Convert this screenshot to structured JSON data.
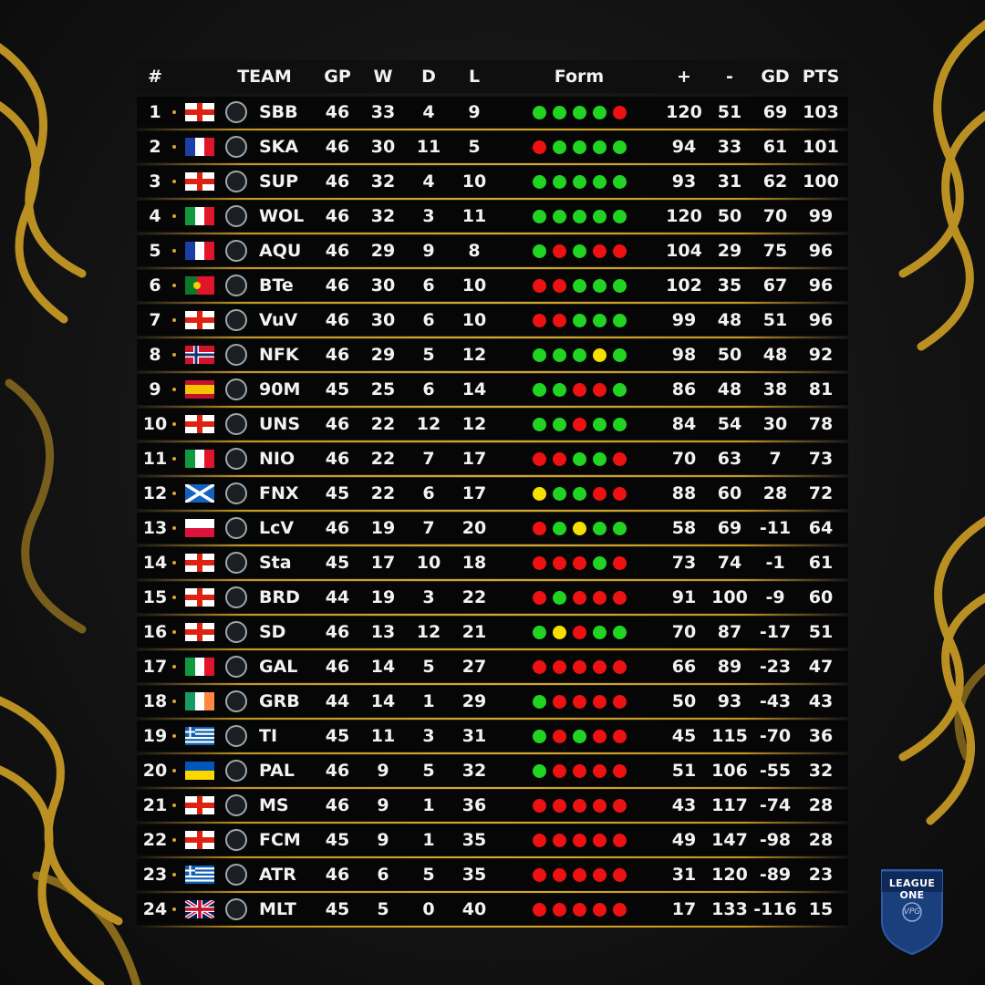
{
  "colors": {
    "accent_gold": "#d9a727",
    "win": "#22d422",
    "loss": "#ee1111",
    "draw": "#f5e000",
    "background": "#141414"
  },
  "header": {
    "rank": "#",
    "team": "TEAM",
    "gp": "GP",
    "w": "W",
    "d": "D",
    "l": "L",
    "form": "Form",
    "plus": "+",
    "minus": "-",
    "gd": "GD",
    "pts": "PTS"
  },
  "rows": [
    {
      "rank": "1",
      "flag": "england",
      "team": "SBB",
      "gp": "46",
      "w": "33",
      "d": "4",
      "l": "9",
      "form": [
        "W",
        "W",
        "W",
        "W",
        "L"
      ],
      "plus": "120",
      "minus": "51",
      "gd": "69",
      "pts": "103"
    },
    {
      "rank": "2",
      "flag": "france",
      "team": "SKA",
      "gp": "46",
      "w": "30",
      "d": "11",
      "l": "5",
      "form": [
        "L",
        "W",
        "W",
        "W",
        "W"
      ],
      "plus": "94",
      "minus": "33",
      "gd": "61",
      "pts": "101"
    },
    {
      "rank": "3",
      "flag": "england",
      "team": "SUP",
      "gp": "46",
      "w": "32",
      "d": "4",
      "l": "10",
      "form": [
        "W",
        "W",
        "W",
        "W",
        "W"
      ],
      "plus": "93",
      "minus": "31",
      "gd": "62",
      "pts": "100"
    },
    {
      "rank": "4",
      "flag": "italy",
      "team": "WOL",
      "gp": "46",
      "w": "32",
      "d": "3",
      "l": "11",
      "form": [
        "W",
        "W",
        "W",
        "W",
        "W"
      ],
      "plus": "120",
      "minus": "50",
      "gd": "70",
      "pts": "99"
    },
    {
      "rank": "5",
      "flag": "france",
      "team": "AQU",
      "gp": "46",
      "w": "29",
      "d": "9",
      "l": "8",
      "form": [
        "W",
        "L",
        "W",
        "L",
        "L"
      ],
      "plus": "104",
      "minus": "29",
      "gd": "75",
      "pts": "96"
    },
    {
      "rank": "6",
      "flag": "portugal",
      "team": "BTe",
      "gp": "46",
      "w": "30",
      "d": "6",
      "l": "10",
      "form": [
        "L",
        "L",
        "W",
        "W",
        "W"
      ],
      "plus": "102",
      "minus": "35",
      "gd": "67",
      "pts": "96"
    },
    {
      "rank": "7",
      "flag": "england",
      "team": "VuV",
      "gp": "46",
      "w": "30",
      "d": "6",
      "l": "10",
      "form": [
        "L",
        "L",
        "W",
        "W",
        "W"
      ],
      "plus": "99",
      "minus": "48",
      "gd": "51",
      "pts": "96"
    },
    {
      "rank": "8",
      "flag": "norway",
      "team": "NFK",
      "gp": "46",
      "w": "29",
      "d": "5",
      "l": "12",
      "form": [
        "W",
        "W",
        "W",
        "D",
        "W"
      ],
      "plus": "98",
      "minus": "50",
      "gd": "48",
      "pts": "92"
    },
    {
      "rank": "9",
      "flag": "spain",
      "team": "90M",
      "gp": "45",
      "w": "25",
      "d": "6",
      "l": "14",
      "form": [
        "W",
        "W",
        "L",
        "L",
        "W"
      ],
      "plus": "86",
      "minus": "48",
      "gd": "38",
      "pts": "81"
    },
    {
      "rank": "10",
      "flag": "england",
      "team": "UNS",
      "gp": "46",
      "w": "22",
      "d": "12",
      "l": "12",
      "form": [
        "W",
        "W",
        "L",
        "W",
        "W"
      ],
      "plus": "84",
      "minus": "54",
      "gd": "30",
      "pts": "78"
    },
    {
      "rank": "11",
      "flag": "italy",
      "team": "NIO",
      "gp": "46",
      "w": "22",
      "d": "7",
      "l": "17",
      "form": [
        "L",
        "L",
        "W",
        "W",
        "L"
      ],
      "plus": "70",
      "minus": "63",
      "gd": "7",
      "pts": "73"
    },
    {
      "rank": "12",
      "flag": "scotland",
      "team": "FNX",
      "gp": "45",
      "w": "22",
      "d": "6",
      "l": "17",
      "form": [
        "D",
        "W",
        "W",
        "L",
        "L"
      ],
      "plus": "88",
      "minus": "60",
      "gd": "28",
      "pts": "72"
    },
    {
      "rank": "13",
      "flag": "poland",
      "team": "LcV",
      "gp": "46",
      "w": "19",
      "d": "7",
      "l": "20",
      "form": [
        "L",
        "W",
        "D",
        "W",
        "W"
      ],
      "plus": "58",
      "minus": "69",
      "gd": "-11",
      "pts": "64"
    },
    {
      "rank": "14",
      "flag": "england",
      "team": "Sta",
      "gp": "45",
      "w": "17",
      "d": "10",
      "l": "18",
      "form": [
        "L",
        "L",
        "L",
        "W",
        "L"
      ],
      "plus": "73",
      "minus": "74",
      "gd": "-1",
      "pts": "61"
    },
    {
      "rank": "15",
      "flag": "england",
      "team": "BRD",
      "gp": "44",
      "w": "19",
      "d": "3",
      "l": "22",
      "form": [
        "L",
        "W",
        "L",
        "L",
        "L"
      ],
      "plus": "91",
      "minus": "100",
      "gd": "-9",
      "pts": "60"
    },
    {
      "rank": "16",
      "flag": "england",
      "team": "SD",
      "gp": "46",
      "w": "13",
      "d": "12",
      "l": "21",
      "form": [
        "W",
        "D",
        "L",
        "W",
        "W"
      ],
      "plus": "70",
      "minus": "87",
      "gd": "-17",
      "pts": "51"
    },
    {
      "rank": "17",
      "flag": "italy",
      "team": "GAL",
      "gp": "46",
      "w": "14",
      "d": "5",
      "l": "27",
      "form": [
        "L",
        "L",
        "L",
        "L",
        "L"
      ],
      "plus": "66",
      "minus": "89",
      "gd": "-23",
      "pts": "47"
    },
    {
      "rank": "18",
      "flag": "ireland",
      "team": "GRB",
      "gp": "44",
      "w": "14",
      "d": "1",
      "l": "29",
      "form": [
        "W",
        "L",
        "L",
        "L",
        "L"
      ],
      "plus": "50",
      "minus": "93",
      "gd": "-43",
      "pts": "43"
    },
    {
      "rank": "19",
      "flag": "greece",
      "team": "TI",
      "gp": "45",
      "w": "11",
      "d": "3",
      "l": "31",
      "form": [
        "W",
        "L",
        "W",
        "L",
        "L"
      ],
      "plus": "45",
      "minus": "115",
      "gd": "-70",
      "pts": "36"
    },
    {
      "rank": "20",
      "flag": "ukraine",
      "team": "PAL",
      "gp": "46",
      "w": "9",
      "d": "5",
      "l": "32",
      "form": [
        "W",
        "L",
        "L",
        "L",
        "L"
      ],
      "plus": "51",
      "minus": "106",
      "gd": "-55",
      "pts": "32"
    },
    {
      "rank": "21",
      "flag": "england",
      "team": "MS",
      "gp": "46",
      "w": "9",
      "d": "1",
      "l": "36",
      "form": [
        "L",
        "L",
        "L",
        "L",
        "L"
      ],
      "plus": "43",
      "minus": "117",
      "gd": "-74",
      "pts": "28"
    },
    {
      "rank": "22",
      "flag": "england",
      "team": "FCM",
      "gp": "45",
      "w": "9",
      "d": "1",
      "l": "35",
      "form": [
        "L",
        "L",
        "L",
        "L",
        "L"
      ],
      "plus": "49",
      "minus": "147",
      "gd": "-98",
      "pts": "28"
    },
    {
      "rank": "23",
      "flag": "greece",
      "team": "ATR",
      "gp": "46",
      "w": "6",
      "d": "5",
      "l": "35",
      "form": [
        "L",
        "L",
        "L",
        "L",
        "L"
      ],
      "plus": "31",
      "minus": "120",
      "gd": "-89",
      "pts": "23"
    },
    {
      "rank": "24",
      "flag": "uk",
      "team": "MLT",
      "gp": "45",
      "w": "5",
      "d": "0",
      "l": "40",
      "form": [
        "L",
        "L",
        "L",
        "L",
        "L"
      ],
      "plus": "17",
      "minus": "133",
      "gd": "-116",
      "pts": "15"
    }
  ],
  "league_badge": {
    "title": "LEAGUE ONE",
    "sub": "VPG"
  }
}
